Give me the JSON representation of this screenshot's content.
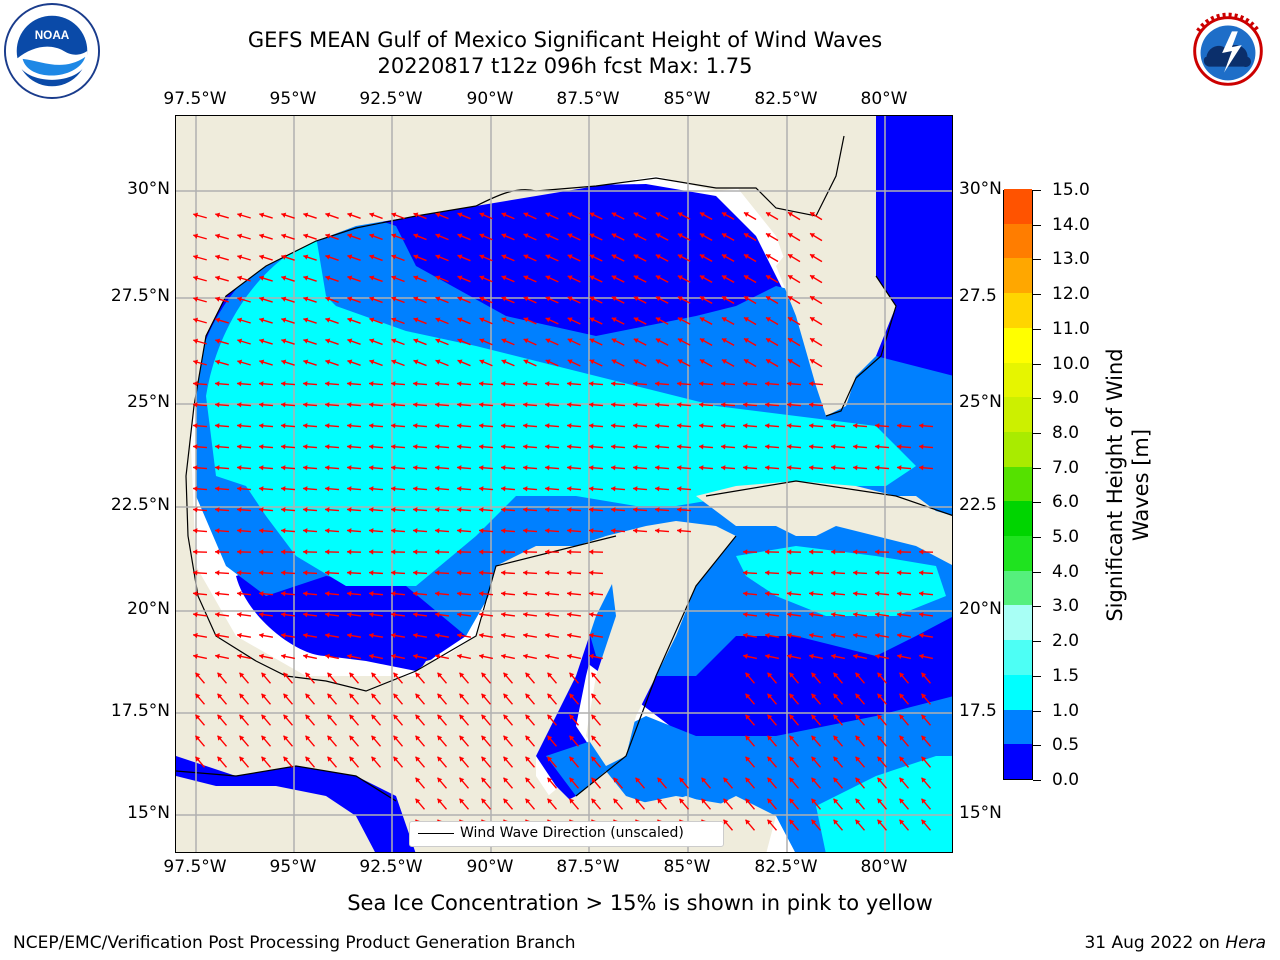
{
  "title": {
    "line1": "GEFS MEAN Gulf of Mexico Significant Height of Wind Waves",
    "line2": "20220817 t12z 096h fcst   Max: 1.75"
  },
  "logos": {
    "left": "noaa-logo",
    "left_text": "NATIONAL OCEANIC AND ATMOSPHERIC ADMINISTRATION · U.S. DEPARTMENT OF COMMERCE",
    "left_mark": "NOAA",
    "right": "national-weather-service-logo",
    "right_text": "NATIONAL WEATHER SERVICE"
  },
  "map": {
    "lon_labels": [
      "97.5°W",
      "95°W",
      "92.5°W",
      "90°W",
      "87.5°W",
      "85°W",
      "82.5°W",
      "80°W"
    ],
    "lat_labels_left": [
      "30°N",
      "27.5°N",
      "25°N",
      "22.5°N",
      "20°N",
      "17.5°N",
      "15°N"
    ],
    "lat_labels_right": [
      "30°N",
      "27.5",
      "25°N",
      "22.5",
      "20°N",
      "17.5",
      "15°N"
    ],
    "legend_label": "Wind Wave Direction (unscaled)",
    "colors": {
      "land": "#efecdc",
      "grid": "#b0b0b0",
      "arrow": "#ff0000",
      "band_0_0.5": "#0000ff",
      "band_0.5_1.0": "#0080ff",
      "band_1.0_1.5": "#00ffff"
    },
    "icons": [
      "wind-wave-arrow-icon"
    ]
  },
  "colorbar": {
    "title_line1": "Significant Height of Wind",
    "title_line2": "Waves [m]",
    "ticks": [
      "0.0",
      "0.5",
      "1.0",
      "1.5",
      "2.0",
      "3.0",
      "4.0",
      "5.0",
      "6.0",
      "7.0",
      "8.0",
      "9.0",
      "10.0",
      "11.0",
      "12.0",
      "13.0",
      "14.0",
      "15.0"
    ],
    "segment_colors": [
      "#0000ff",
      "#0080ff",
      "#00ffff",
      "#4dfff5",
      "#a8fff5",
      "#55f07d",
      "#1fe31f",
      "#00d500",
      "#55e100",
      "#a9eb00",
      "#ccf000",
      "#e6f500",
      "#ffff00",
      "#ffd500",
      "#ffa700",
      "#ff7d00",
      "#ff5300",
      "#ff0000"
    ]
  },
  "subcaption": "Sea Ice Concentration > 15% is shown in pink to yellow",
  "footer": {
    "left": "NCEP/EMC/Verification Post Processing Product Generation Branch",
    "right_date": "31 Aug 2022 on ",
    "right_machine": "Hera"
  }
}
